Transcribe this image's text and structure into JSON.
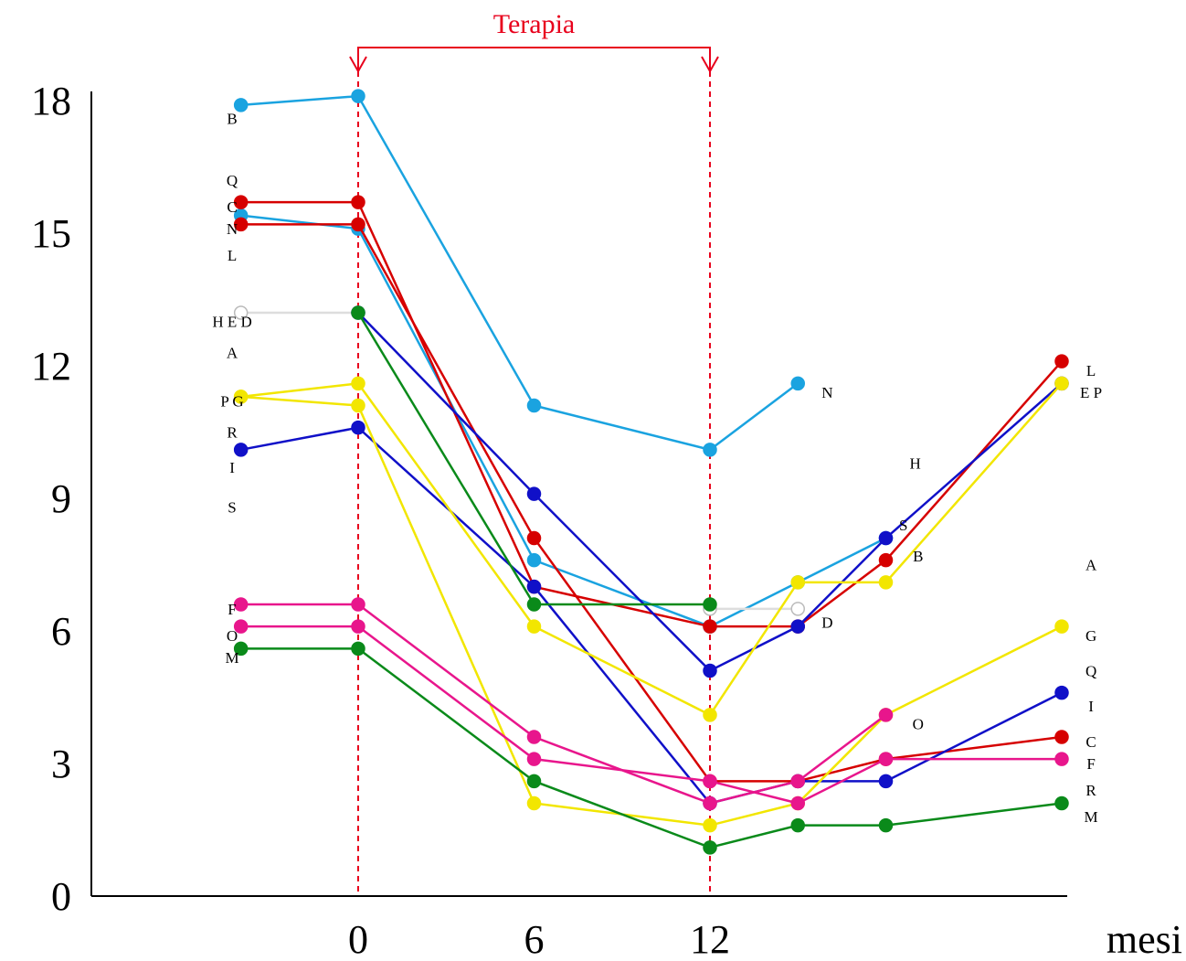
{
  "chart_data": {
    "type": "line",
    "title": "",
    "xlabel": "mesi",
    "ylabel": "",
    "ylim": [
      0,
      18
    ],
    "yticks": [
      "0",
      "3",
      "6",
      "9",
      "12",
      "15",
      "18"
    ],
    "xticks": [
      "0",
      "6",
      "12"
    ],
    "grid": false,
    "therapy": {
      "label": "Terapia",
      "start": 0,
      "end": 12,
      "color": "#e8001c"
    },
    "x": [
      -4,
      0,
      6,
      12,
      15,
      18,
      24
    ],
    "series": [
      {
        "color": "#1aa3e0",
        "values": [
          17.9,
          18.1,
          11.1,
          10.1,
          11.6,
          null,
          null
        ]
      },
      {
        "color": "#1aa3e0",
        "values": [
          15.4,
          15.1,
          7.6,
          6.1,
          7.1,
          8.1,
          null
        ]
      },
      {
        "color": "#d60000",
        "values": [
          15.7,
          15.7,
          7.0,
          6.1,
          6.1,
          7.6,
          12.1
        ]
      },
      {
        "color": "#d60000",
        "values": [
          15.2,
          15.2,
          8.1,
          2.6,
          2.6,
          3.1,
          3.6
        ]
      },
      {
        "color": "#dddddd",
        "hollow": true,
        "values": [
          13.2,
          13.2,
          null,
          6.5,
          6.5,
          null,
          null
        ]
      },
      {
        "color": "#1010c8",
        "values": [
          10.1,
          10.6,
          7.0,
          2.1,
          2.6,
          2.6,
          4.6
        ]
      },
      {
        "color": "#1010c8",
        "values": [
          null,
          13.2,
          9.1,
          5.1,
          6.1,
          8.1,
          11.6
        ]
      },
      {
        "color": "#f2e600",
        "values": [
          11.3,
          11.6,
          6.1,
          4.1,
          7.1,
          7.1,
          11.6
        ]
      },
      {
        "color": "#f2e600",
        "values": [
          11.3,
          11.1,
          2.1,
          1.6,
          2.1,
          4.1,
          6.1
        ]
      },
      {
        "color": "#0a8a1a",
        "values": [
          null,
          13.2,
          6.6,
          6.6,
          null,
          null,
          null
        ]
      },
      {
        "color": "#0a8a1a",
        "values": [
          5.6,
          5.6,
          2.6,
          1.1,
          1.6,
          1.6,
          2.1
        ]
      },
      {
        "color": "#e8168c",
        "values": [
          6.6,
          6.6,
          3.6,
          2.1,
          2.6,
          4.1,
          null
        ]
      },
      {
        "color": "#e8168c",
        "values": [
          6.1,
          6.1,
          3.1,
          2.6,
          2.1,
          3.1,
          3.1
        ]
      }
    ],
    "labels": [
      {
        "text": "B",
        "x": -4.3,
        "y": 17.6
      },
      {
        "text": "Q",
        "x": -4.3,
        "y": 16.2
      },
      {
        "text": "C",
        "x": -4.3,
        "y": 15.6
      },
      {
        "text": "N",
        "x": -4.3,
        "y": 15.1
      },
      {
        "text": "L",
        "x": -4.3,
        "y": 14.5
      },
      {
        "text": "H   E   D",
        "x": -4.3,
        "y": 13.0
      },
      {
        "text": "A",
        "x": -4.3,
        "y": 12.3
      },
      {
        "text": "P   G",
        "x": -4.3,
        "y": 11.2
      },
      {
        "text": "R",
        "x": -4.3,
        "y": 10.5
      },
      {
        "text": "I",
        "x": -4.3,
        "y": 9.7
      },
      {
        "text": "S",
        "x": -4.3,
        "y": 8.8
      },
      {
        "text": "F",
        "x": -4.3,
        "y": 6.5
      },
      {
        "text": "O",
        "x": -4.3,
        "y": 5.9
      },
      {
        "text": "M",
        "x": -4.3,
        "y": 5.4
      },
      {
        "text": "N",
        "x": 16.0,
        "y": 11.4
      },
      {
        "text": "H",
        "x": 19.0,
        "y": 9.8
      },
      {
        "text": "S",
        "x": 18.6,
        "y": 8.4
      },
      {
        "text": "B",
        "x": 19.1,
        "y": 7.7
      },
      {
        "text": "D",
        "x": 16.0,
        "y": 6.2
      },
      {
        "text": "O",
        "x": 19.1,
        "y": 3.9
      },
      {
        "text": "L",
        "x": 25.0,
        "y": 11.9
      },
      {
        "text": "E   P",
        "x": 25.0,
        "y": 11.4
      },
      {
        "text": "A",
        "x": 25.0,
        "y": 7.5
      },
      {
        "text": "G",
        "x": 25.0,
        "y": 5.9
      },
      {
        "text": "Q",
        "x": 25.0,
        "y": 5.1
      },
      {
        "text": "I",
        "x": 25.0,
        "y": 4.3
      },
      {
        "text": "C",
        "x": 25.0,
        "y": 3.5
      },
      {
        "text": "F",
        "x": 25.0,
        "y": 3.0
      },
      {
        "text": "R",
        "x": 25.0,
        "y": 2.4
      },
      {
        "text": "M",
        "x": 25.0,
        "y": 1.8
      }
    ]
  }
}
